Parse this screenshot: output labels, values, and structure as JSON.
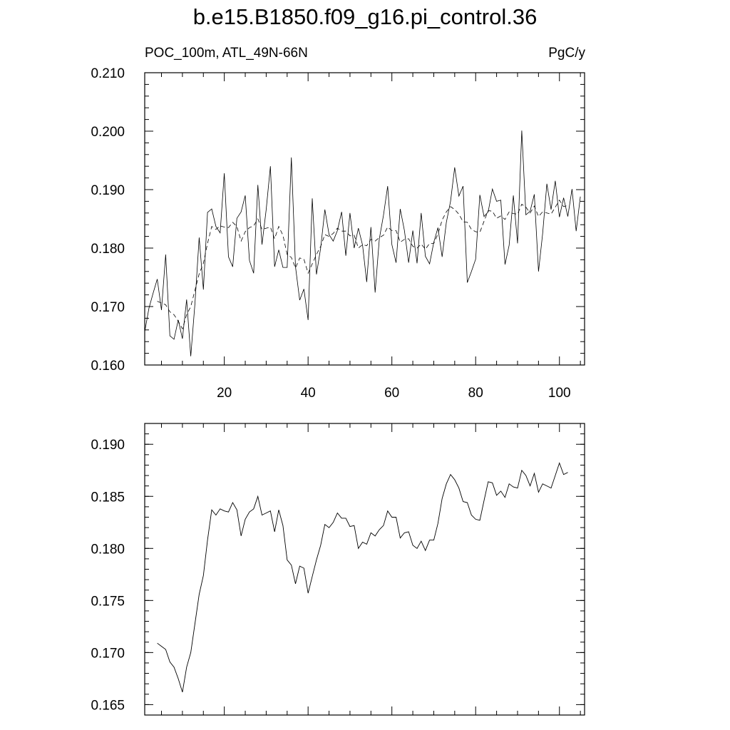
{
  "title": "b.e15.B1850.f09_g16.pi_control.36",
  "subtitle_left": "POC_100m, ATL_49N-66N",
  "subtitle_right": "PgC/y",
  "chart_data": [
    {
      "type": "line",
      "panel": "top",
      "xlim": [
        1,
        106
      ],
      "ylim": [
        0.16,
        0.21
      ],
      "x_ticks": [
        20,
        40,
        60,
        80,
        100
      ],
      "y_ticks": [
        0.16,
        0.17,
        0.18,
        0.19,
        0.2,
        0.21
      ],
      "y_tick_labels": [
        "0.160",
        "0.170",
        "0.180",
        "0.190",
        "0.200",
        "0.210"
      ],
      "x_tick_labels": [
        "20",
        "40",
        "60",
        "80",
        "100"
      ],
      "series": [
        {
          "style": "solid",
          "x_start": 1,
          "values": [
            0.1657,
            0.1697,
            0.1723,
            0.1747,
            0.1694,
            0.1789,
            0.165,
            0.1644,
            0.1677,
            0.1645,
            0.1712,
            0.1615,
            0.1706,
            0.1818,
            0.1729,
            0.1861,
            0.1867,
            0.1837,
            0.1826,
            0.1928,
            0.1785,
            0.1768,
            0.1851,
            0.1862,
            0.189,
            0.1779,
            0.1757,
            0.1908,
            0.1806,
            0.1866,
            0.194,
            0.1768,
            0.1797,
            0.1767,
            0.1767,
            0.1955,
            0.1768,
            0.1711,
            0.173,
            0.1677,
            0.1885,
            0.1755,
            0.18,
            0.1866,
            0.1823,
            0.1812,
            0.183,
            0.1862,
            0.1787,
            0.186,
            0.18,
            0.1834,
            0.1805,
            0.1742,
            0.1836,
            0.1724,
            0.1816,
            0.1856,
            0.1906,
            0.1806,
            0.1775,
            0.1867,
            0.183,
            0.1775,
            0.183,
            0.1774,
            0.186,
            0.1786,
            0.1773,
            0.181,
            0.1835,
            0.1785,
            0.1844,
            0.188,
            0.1938,
            0.1889,
            0.1906,
            0.1741,
            0.176,
            0.1781,
            0.1891,
            0.1854,
            0.1862,
            0.1901,
            0.188,
            0.1882,
            0.1772,
            0.1805,
            0.189,
            0.1808,
            0.2001,
            0.1857,
            0.1863,
            0.1892,
            0.176,
            0.1825,
            0.191,
            0.1866,
            0.1915,
            0.1853,
            0.1886,
            0.1854,
            0.1901,
            0.1829,
            0.1888
          ]
        },
        {
          "style": "dashed",
          "x_start": 4,
          "values": [
            0.1709,
            0.1706,
            0.1703,
            0.1691,
            0.1686,
            0.1675,
            0.1662,
            0.1686,
            0.17,
            0.1728,
            0.1756,
            0.1774,
            0.1808,
            0.1837,
            0.1832,
            0.1838,
            0.1836,
            0.1835,
            0.1844,
            0.1837,
            0.1812,
            0.1828,
            0.1835,
            0.1838,
            0.185,
            0.1832,
            0.1834,
            0.1836,
            0.1816,
            0.1837,
            0.1822,
            0.1789,
            0.1784,
            0.1766,
            0.1783,
            0.1781,
            0.1757,
            0.1773,
            0.1789,
            0.1803,
            0.1823,
            0.182,
            0.1825,
            0.1834,
            0.1829,
            0.1829,
            0.1821,
            0.1822,
            0.18,
            0.1806,
            0.1804,
            0.1815,
            0.1812,
            0.1818,
            0.1822,
            0.1836,
            0.183,
            0.183,
            0.181,
            0.1815,
            0.1816,
            0.1803,
            0.18,
            0.1807,
            0.1798,
            0.1808,
            0.1808,
            0.1824,
            0.1848,
            0.1862,
            0.1871,
            0.1866,
            0.1858,
            0.1845,
            0.1844,
            0.1832,
            0.1828,
            0.1827,
            0.1846,
            0.1864,
            0.1863,
            0.1851,
            0.1855,
            0.1849,
            0.1862,
            0.1859,
            0.1858,
            0.1875,
            0.187,
            0.186,
            0.1872,
            0.1854,
            0.1862,
            0.186,
            0.1858,
            0.187,
            0.1882,
            0.1871,
            0.1873
          ]
        }
      ]
    },
    {
      "type": "line",
      "panel": "bottom",
      "xlim": [
        1,
        106
      ],
      "ylim": [
        0.164,
        0.192
      ],
      "y_ticks": [
        0.165,
        0.17,
        0.175,
        0.18,
        0.185,
        0.19
      ],
      "y_tick_labels": [
        "0.165",
        "0.170",
        "0.175",
        "0.180",
        "0.185",
        "0.190"
      ],
      "series": [
        {
          "style": "solid",
          "x_start": 4,
          "values": [
            0.1709,
            0.1706,
            0.1703,
            0.1691,
            0.1686,
            0.1675,
            0.1662,
            0.1686,
            0.17,
            0.1728,
            0.1756,
            0.1774,
            0.1808,
            0.1837,
            0.1832,
            0.1838,
            0.1836,
            0.1835,
            0.1844,
            0.1837,
            0.1812,
            0.1828,
            0.1835,
            0.1838,
            0.185,
            0.1832,
            0.1834,
            0.1836,
            0.1816,
            0.1837,
            0.1822,
            0.1789,
            0.1784,
            0.1766,
            0.1783,
            0.1781,
            0.1757,
            0.1773,
            0.1789,
            0.1803,
            0.1823,
            0.182,
            0.1825,
            0.1834,
            0.1829,
            0.1829,
            0.1821,
            0.1822,
            0.18,
            0.1806,
            0.1804,
            0.1815,
            0.1812,
            0.1818,
            0.1822,
            0.1836,
            0.183,
            0.183,
            0.181,
            0.1815,
            0.1816,
            0.1803,
            0.18,
            0.1807,
            0.1798,
            0.1808,
            0.1808,
            0.1824,
            0.1848,
            0.1862,
            0.1871,
            0.1866,
            0.1858,
            0.1845,
            0.1844,
            0.1832,
            0.1828,
            0.1827,
            0.1846,
            0.1864,
            0.1863,
            0.1851,
            0.1855,
            0.1849,
            0.1862,
            0.1859,
            0.1858,
            0.1875,
            0.187,
            0.186,
            0.1872,
            0.1854,
            0.1862,
            0.186,
            0.1858,
            0.187,
            0.1882,
            0.1871,
            0.1873
          ]
        }
      ]
    }
  ]
}
